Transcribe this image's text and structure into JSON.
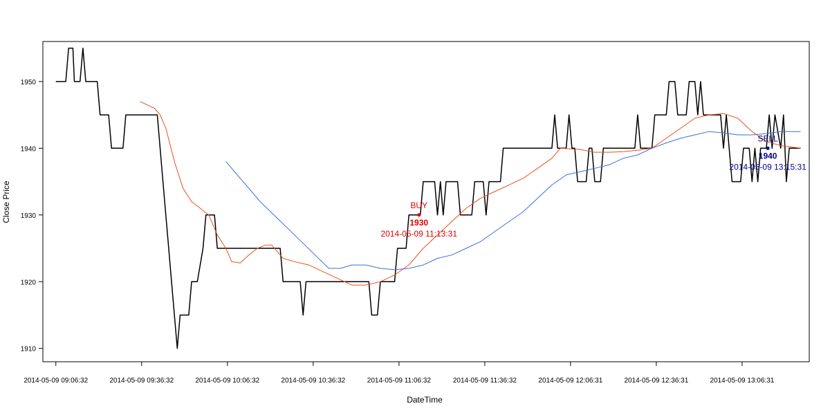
{
  "chart_data": {
    "type": "line",
    "title": "",
    "xlabel": "DateTime",
    "ylabel": "Close Price",
    "ylim": [
      1908,
      1956
    ],
    "xlim": [
      "2014-05-09 09:02:00",
      "2014-05-09 13:30:00"
    ],
    "y_ticks": [
      1910,
      1920,
      1930,
      1940,
      1950
    ],
    "x_tick_labels": [
      "2014-05-09 09:06:32",
      "2014-05-09 09:36:32",
      "2014-05-09 10:06:32",
      "2014-05-09 10:36:32",
      "2014-05-09 11:06:32",
      "2014-05-09 11:36:32",
      "2014-05-09 12:06:31",
      "2014-05-09 12:36:31",
      "2014-05-09 13:06:31"
    ],
    "grid": false,
    "legend": "none",
    "series": [
      {
        "color": "#000000",
        "step": true,
        "points": [
          [
            "09:06:32",
            1950
          ],
          [
            "09:10:00",
            1950
          ],
          [
            "09:11:00",
            1955
          ],
          [
            "09:12:30",
            1955
          ],
          [
            "09:13:00",
            1950
          ],
          [
            "09:15:00",
            1950
          ],
          [
            "09:16:00",
            1955
          ],
          [
            "09:17:00",
            1950
          ],
          [
            "09:21:00",
            1950
          ],
          [
            "09:22:00",
            1945
          ],
          [
            "09:25:00",
            1945
          ],
          [
            "09:26:00",
            1940
          ],
          [
            "09:30:00",
            1940
          ],
          [
            "09:31:00",
            1945
          ],
          [
            "09:42:00",
            1945
          ],
          [
            "09:44:00",
            1935
          ],
          [
            "09:46:00",
            1925
          ],
          [
            "09:47:00",
            1920
          ],
          [
            "09:49:00",
            1910
          ],
          [
            "09:50:00",
            1915
          ],
          [
            "09:53:00",
            1915
          ],
          [
            "09:54:00",
            1920
          ],
          [
            "09:56:00",
            1920
          ],
          [
            "09:58:00",
            1925
          ],
          [
            "09:59:00",
            1930
          ],
          [
            "10:02:00",
            1930
          ],
          [
            "10:03:00",
            1925
          ],
          [
            "10:25:00",
            1925
          ],
          [
            "10:26:00",
            1920
          ],
          [
            "10:32:00",
            1920
          ],
          [
            "10:33:00",
            1915
          ],
          [
            "10:34:00",
            1920
          ],
          [
            "10:56:00",
            1920
          ],
          [
            "10:57:00",
            1915
          ],
          [
            "10:59:00",
            1915
          ],
          [
            "11:00:00",
            1920
          ],
          [
            "11:05:00",
            1920
          ],
          [
            "11:06:00",
            1925
          ],
          [
            "11:09:00",
            1925
          ],
          [
            "11:10:00",
            1930
          ],
          [
            "11:14:00",
            1930
          ],
          [
            "11:15:00",
            1935
          ],
          [
            "11:19:00",
            1935
          ],
          [
            "11:20:00",
            1930
          ],
          [
            "11:21:00",
            1935
          ],
          [
            "11:22:00",
            1930
          ],
          [
            "11:23:00",
            1935
          ],
          [
            "11:27:00",
            1935
          ],
          [
            "11:28:00",
            1930
          ],
          [
            "11:32:00",
            1930
          ],
          [
            "11:33:00",
            1935
          ],
          [
            "11:36:00",
            1935
          ],
          [
            "11:37:00",
            1930
          ],
          [
            "11:38:00",
            1935
          ],
          [
            "11:42:00",
            1935
          ],
          [
            "11:43:00",
            1940
          ],
          [
            "12:00:00",
            1940
          ],
          [
            "12:01:00",
            1945
          ],
          [
            "12:02:00",
            1940
          ],
          [
            "12:05:00",
            1940
          ],
          [
            "12:06:00",
            1945
          ],
          [
            "12:07:00",
            1940
          ],
          [
            "12:08:00",
            1940
          ],
          [
            "12:09:00",
            1935
          ],
          [
            "12:12:00",
            1935
          ],
          [
            "12:13:00",
            1940
          ],
          [
            "12:14:00",
            1940
          ],
          [
            "12:15:00",
            1935
          ],
          [
            "12:17:00",
            1935
          ],
          [
            "12:18:00",
            1940
          ],
          [
            "12:29:00",
            1940
          ],
          [
            "12:30:00",
            1945
          ],
          [
            "12:31:00",
            1940
          ],
          [
            "12:35:00",
            1940
          ],
          [
            "12:36:00",
            1945
          ],
          [
            "12:40:00",
            1945
          ],
          [
            "12:41:00",
            1950
          ],
          [
            "12:43:00",
            1950
          ],
          [
            "12:44:00",
            1945
          ],
          [
            "12:47:00",
            1945
          ],
          [
            "12:48:00",
            1950
          ],
          [
            "12:50:00",
            1950
          ],
          [
            "12:51:00",
            1945
          ],
          [
            "12:52:00",
            1950
          ],
          [
            "12:53:00",
            1945
          ],
          [
            "12:59:00",
            1945
          ],
          [
            "13:00:00",
            1940
          ],
          [
            "13:01:00",
            1945
          ],
          [
            "13:02:00",
            1940
          ],
          [
            "13:03:00",
            1935
          ],
          [
            "13:06:00",
            1935
          ],
          [
            "13:07:00",
            1940
          ],
          [
            "13:09:00",
            1940
          ],
          [
            "13:10:00",
            1935
          ],
          [
            "13:11:00",
            1940
          ],
          [
            "13:12:00",
            1935
          ],
          [
            "13:13:00",
            1940
          ],
          [
            "13:15:00",
            1940
          ],
          [
            "13:16:00",
            1945
          ],
          [
            "13:17:00",
            1940
          ],
          [
            "13:18:00",
            1945
          ],
          [
            "13:20:00",
            1940
          ],
          [
            "13:21:00",
            1945
          ],
          [
            "13:22:00",
            1935
          ],
          [
            "13:23:00",
            1940
          ],
          [
            "13:27:00",
            1940
          ]
        ]
      },
      {
        "color": "#e8501e",
        "step": false,
        "points": [
          [
            "09:36:00",
            1947
          ],
          [
            "09:41:00",
            1946
          ],
          [
            "09:43:00",
            1945
          ],
          [
            "09:45:00",
            1943
          ],
          [
            "09:48:00",
            1938
          ],
          [
            "09:51:00",
            1934
          ],
          [
            "09:54:00",
            1932
          ],
          [
            "09:57:00",
            1931
          ],
          [
            "10:00:00",
            1930
          ],
          [
            "10:03:00",
            1927
          ],
          [
            "10:06:00",
            1925
          ],
          [
            "10:08:00",
            1923
          ],
          [
            "10:11:00",
            1922.8
          ],
          [
            "10:14:00",
            1924
          ],
          [
            "10:17:00",
            1925
          ],
          [
            "10:20:00",
            1925.5
          ],
          [
            "10:22:00",
            1925.5
          ],
          [
            "10:24:00",
            1924.5
          ],
          [
            "10:26:00",
            1923.5
          ],
          [
            "10:30:00",
            1923
          ],
          [
            "10:35:00",
            1922.5
          ],
          [
            "10:40:00",
            1921.5
          ],
          [
            "10:45:00",
            1920.5
          ],
          [
            "10:50:00",
            1919.5
          ],
          [
            "10:55:00",
            1919.5
          ],
          [
            "11:00:00",
            1920
          ],
          [
            "11:05:00",
            1921
          ],
          [
            "11:10:00",
            1922.5
          ],
          [
            "11:15:00",
            1925
          ],
          [
            "11:20:00",
            1927
          ],
          [
            "11:25:00",
            1929
          ],
          [
            "11:30:00",
            1931
          ],
          [
            "11:35:00",
            1932.5
          ],
          [
            "11:40:00",
            1933.5
          ],
          [
            "11:45:00",
            1934.5
          ],
          [
            "11:50:00",
            1935.5
          ],
          [
            "11:55:00",
            1937
          ],
          [
            "12:00:00",
            1938.5
          ],
          [
            "12:03:00",
            1940
          ],
          [
            "12:10:00",
            1939.8
          ],
          [
            "12:15:00",
            1939.4
          ],
          [
            "12:20:00",
            1939.4
          ],
          [
            "12:25:00",
            1939.5
          ],
          [
            "12:30:00",
            1939.7
          ],
          [
            "12:35:00",
            1940
          ],
          [
            "12:40:00",
            1941.5
          ],
          [
            "12:45:00",
            1943
          ],
          [
            "12:50:00",
            1944.5
          ],
          [
            "12:55:00",
            1945
          ],
          [
            "13:00:00",
            1945.2
          ],
          [
            "13:05:00",
            1944.5
          ],
          [
            "13:10:00",
            1942.5
          ],
          [
            "13:15:00",
            1941
          ],
          [
            "13:20:00",
            1940.4
          ],
          [
            "13:27:00",
            1940
          ]
        ]
      },
      {
        "color": "#3a6fd8",
        "step": false,
        "points": [
          [
            "10:06:00",
            1938
          ],
          [
            "10:12:00",
            1935
          ],
          [
            "10:18:00",
            1932
          ],
          [
            "10:24:00",
            1929.5
          ],
          [
            "10:30:00",
            1927
          ],
          [
            "10:36:00",
            1924.5
          ],
          [
            "10:42:00",
            1922
          ],
          [
            "10:46:00",
            1922
          ],
          [
            "10:50:00",
            1922.5
          ],
          [
            "10:55:00",
            1922.5
          ],
          [
            "11:00:00",
            1922
          ],
          [
            "11:05:00",
            1921.8
          ],
          [
            "11:10:00",
            1922
          ],
          [
            "11:15:00",
            1922.5
          ],
          [
            "11:20:00",
            1923.5
          ],
          [
            "11:25:00",
            1924
          ],
          [
            "11:30:00",
            1925
          ],
          [
            "11:35:00",
            1926
          ],
          [
            "11:40:00",
            1927.5
          ],
          [
            "11:45:00",
            1929
          ],
          [
            "11:50:00",
            1930.5
          ],
          [
            "11:55:00",
            1932.5
          ],
          [
            "12:00:00",
            1934.5
          ],
          [
            "12:05:00",
            1936
          ],
          [
            "12:10:00",
            1936.5
          ],
          [
            "12:15:00",
            1937
          ],
          [
            "12:20:00",
            1937.5
          ],
          [
            "12:25:00",
            1938.5
          ],
          [
            "12:30:00",
            1939
          ],
          [
            "12:35:00",
            1940
          ],
          [
            "12:40:00",
            1940.8
          ],
          [
            "12:45:00",
            1941.5
          ],
          [
            "12:50:00",
            1942
          ],
          [
            "12:55:00",
            1942.5
          ],
          [
            "13:00:00",
            1942.3
          ],
          [
            "13:05:00",
            1942
          ],
          [
            "13:10:00",
            1942
          ],
          [
            "13:15:00",
            1942.2
          ],
          [
            "13:20:00",
            1942.5
          ],
          [
            "13:27:00",
            1942.5
          ]
        ]
      }
    ],
    "annotations": [
      {
        "x": "11:13:31",
        "y": 1930,
        "label": "BUY",
        "value_label": "1930",
        "time_label": "2014-05-09 11:13:31",
        "color": "#e00000"
      },
      {
        "x": "13:15:31",
        "y": 1940,
        "label": "SELL",
        "value_label": "1940",
        "time_label": "2014-05-09 13:15:31",
        "color": "#00008b"
      }
    ]
  }
}
